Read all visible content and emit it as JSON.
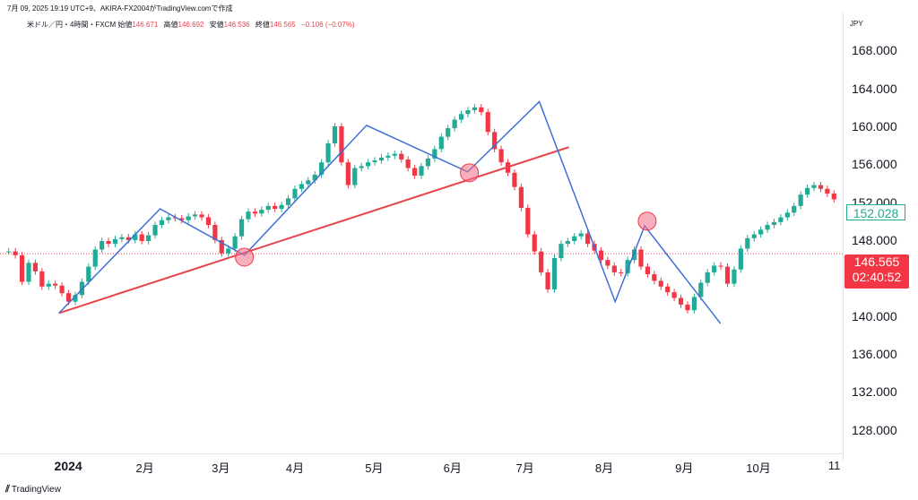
{
  "header": {
    "line1": "7月 09, 2025 19:19 UTC+9、AKIRA-FX2004がTradingView.comで作成",
    "symbol": "米ドル／円・4時間・FXCM",
    "open_label": "始値",
    "open": "146.671",
    "high_label": "高値",
    "high": "146.692",
    "low_label": "安値",
    "low": "146.536",
    "close_label": "終値",
    "close": "146.565",
    "change": "−0.106 (−0.07%)"
  },
  "currency": "JPY",
  "price_tags": {
    "last_close_label": "152.028",
    "current_price": "146.565",
    "countdown": "02:40:52"
  },
  "brand": {
    "name": "TradingView"
  },
  "colors": {
    "up": "#22ab94",
    "down": "#f23645",
    "zigzag": "#3d6fd8",
    "trendline": "#e8444c",
    "marker": "#f06e86"
  },
  "chart_data": {
    "type": "line",
    "series": [
      {
        "values": [
          146.8,
          146.4,
          143.6,
          145.6,
          144.7,
          143.1,
          143.4,
          143.2,
          142.4,
          141.5,
          142.2,
          143.6,
          145.2,
          147.0,
          147.9,
          147.6,
          148.1,
          148.3,
          148.0,
          148.6,
          147.9,
          148.5,
          149.6,
          150.1,
          150.4,
          150.3,
          150.1,
          150.5,
          150.7,
          150.4,
          149.6,
          148.0,
          146.6,
          147.1,
          148.4,
          150.2,
          151.0,
          150.8,
          151.2,
          151.6,
          151.3,
          151.7,
          152.4,
          153.4,
          153.9,
          154.3,
          154.9,
          156.2,
          158.2,
          160.0,
          156.2,
          153.8,
          155.6,
          155.8,
          156.2,
          156.4,
          156.7,
          156.9,
          157.1,
          156.5,
          155.6,
          154.8,
          155.8,
          156.6,
          157.6,
          158.9,
          159.8,
          160.7,
          161.3,
          161.7,
          162.0,
          161.5,
          159.4,
          157.6,
          156.2,
          155.1,
          153.6,
          151.4,
          148.6,
          146.8,
          144.6,
          142.8,
          146.1,
          147.6,
          147.9,
          148.4,
          148.7,
          147.6,
          146.9,
          145.9,
          145.3,
          144.6,
          144.5,
          145.9,
          147.0,
          145.2,
          144.4,
          143.7,
          143.1,
          142.5,
          141.9,
          141.2,
          140.6,
          142.0,
          143.5,
          144.6,
          145.3,
          145.2,
          143.4,
          144.9,
          147.1,
          148.2,
          148.6,
          149.1,
          149.6,
          149.9,
          150.4,
          150.9,
          151.6,
          152.8,
          153.5,
          153.8,
          153.4,
          152.9,
          152.3
        ]
      }
    ],
    "ohlc_last": {
      "open": 146.671,
      "high": 146.692,
      "low": 146.536,
      "close": 146.565
    },
    "zigzag": [
      {
        "x": 0.07,
        "y": 140.3
      },
      {
        "x": 0.19,
        "y": 151.3
      },
      {
        "x": 0.29,
        "y": 146.4
      },
      {
        "x": 0.435,
        "y": 160.1
      },
      {
        "x": 0.555,
        "y": 155.2
      },
      {
        "x": 0.64,
        "y": 162.6
      },
      {
        "x": 0.73,
        "y": 141.5
      },
      {
        "x": 0.765,
        "y": 149.5
      },
      {
        "x": 0.855,
        "y": 139.2
      }
    ],
    "trendline": [
      {
        "x": 0.07,
        "y": 140.3
      },
      {
        "x": 0.675,
        "y": 157.8
      }
    ],
    "markers": [
      {
        "x": 0.29,
        "y": 146.2
      },
      {
        "x": 0.557,
        "y": 155.1
      },
      {
        "x": 0.768,
        "y": 150.0
      }
    ],
    "current_price_line": 146.565,
    "xlabels": [
      "2024",
      "2月",
      "3月",
      "4月",
      "5月",
      "6月",
      "7月",
      "8月",
      "9月",
      "10月",
      "11"
    ],
    "xpos": [
      0.081,
      0.172,
      0.262,
      0.35,
      0.444,
      0.537,
      0.623,
      0.717,
      0.812,
      0.9,
      0.99
    ],
    "yticks": [
      128,
      132,
      136,
      140,
      144,
      148,
      152,
      156,
      160,
      164,
      168
    ],
    "ylabels": [
      "128.000",
      "132.000",
      "136.000",
      "140.000",
      "144.000",
      "148.000",
      "152.000",
      "156.000",
      "160.000",
      "164.000",
      "168.000"
    ],
    "ylim": [
      125.5,
      172.0
    ],
    "grid": false
  }
}
